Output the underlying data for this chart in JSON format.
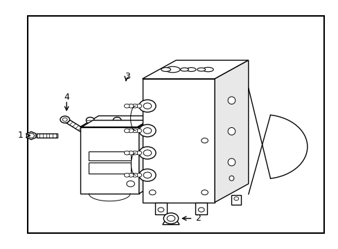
{
  "background_color": "#ffffff",
  "border_color": "#000000",
  "line_color": "#000000",
  "line_width": 1.0,
  "fig_width": 4.89,
  "fig_height": 3.6,
  "border": [
    0.08,
    0.06,
    0.88,
    0.88
  ],
  "label_fontsize": 9
}
